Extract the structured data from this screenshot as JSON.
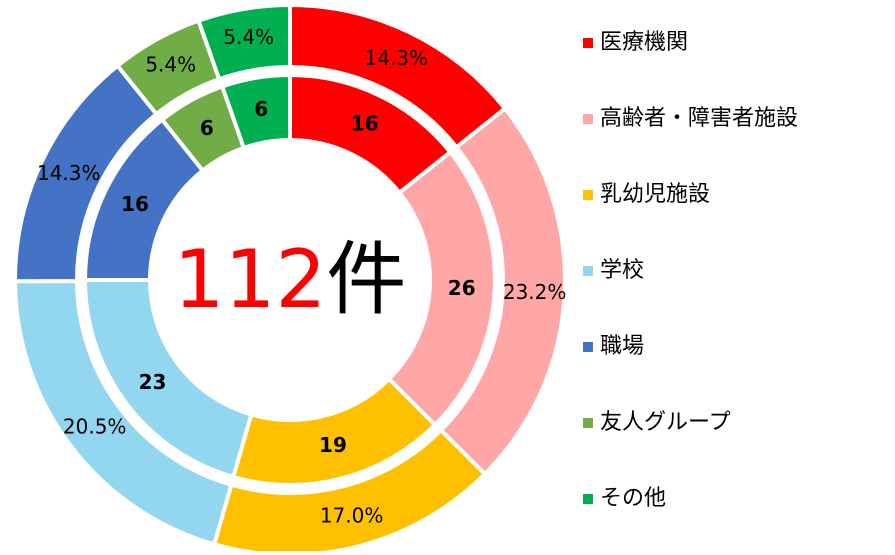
{
  "chart_data": {
    "type": "doughnut",
    "categories": [
      "医療機関",
      "高齢者・障害者施設",
      "乳幼児施設",
      "学校",
      "職場",
      "友人グループ",
      "その他"
    ],
    "colors": [
      "#ff0000",
      "#ffa7a7",
      "#ffc000",
      "#92d6f0",
      "#4472c4",
      "#70ad47",
      "#00b050"
    ],
    "series": [
      {
        "values": [
          16,
          26,
          19,
          23,
          16,
          6,
          6
        ]
      },
      {
        "values": [
          14.3,
          23.2,
          17.0,
          20.5,
          14.3,
          5.4,
          5.4
        ],
        "value_labels": [
          "14.3%",
          "23.2%",
          "17.0%",
          "20.5%",
          "14.3%",
          "5.4%",
          "5.4%"
        ]
      }
    ],
    "total": 112,
    "total_unit": "件",
    "total_color": "#ff0000",
    "legend": "right"
  }
}
